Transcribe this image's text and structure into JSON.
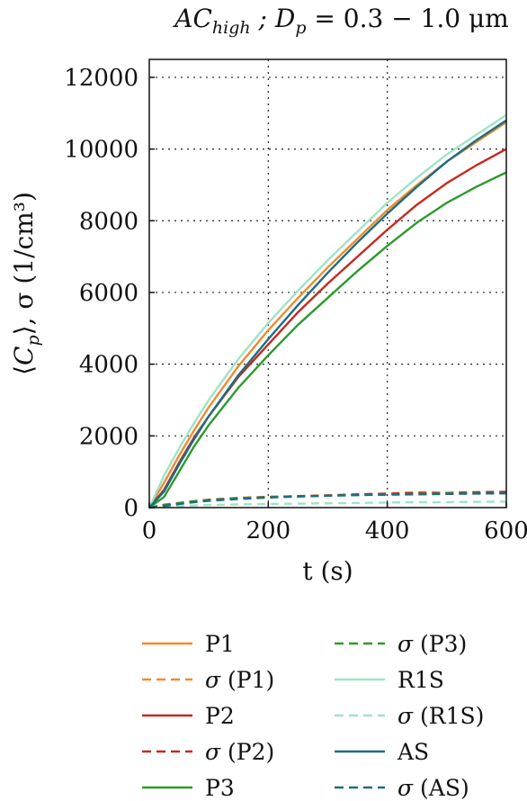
{
  "chart_data": {
    "type": "line",
    "title": "AC_high ; D_p = 0.3 − 1.0 μm",
    "xlabel": "t (s)",
    "ylabel": "⟨C_p⟩, σ (1/cm³)",
    "xlim": [
      0,
      600
    ],
    "ylim": [
      0,
      12500
    ],
    "x_ticks": [
      0,
      200,
      400,
      600
    ],
    "y_ticks": [
      0,
      2000,
      4000,
      6000,
      8000,
      10000,
      12000
    ],
    "grid": true,
    "legend_position": "bottom",
    "x": [
      0,
      25,
      50,
      75,
      100,
      150,
      200,
      250,
      300,
      350,
      400,
      450,
      500,
      550,
      600
    ],
    "series": [
      {
        "name": "P1",
        "color": "#f28a30",
        "dash": "solid",
        "values": [
          0,
          700,
          1450,
          2150,
          2800,
          3950,
          4950,
          5850,
          6700,
          7500,
          8300,
          9000,
          9650,
          10200,
          10750
        ]
      },
      {
        "name": "σ (P1)",
        "color": "#f28a30",
        "dash": "dashed",
        "values": [
          0,
          60,
          110,
          160,
          200,
          250,
          290,
          320,
          340,
          360,
          370,
          380,
          390,
          400,
          410
        ]
      },
      {
        "name": "P2",
        "color": "#c8281e",
        "dash": "solid",
        "values": [
          0,
          500,
          1250,
          1950,
          2550,
          3650,
          4550,
          5450,
          6250,
          7000,
          7750,
          8450,
          9050,
          9550,
          10000
        ]
      },
      {
        "name": "σ (P2)",
        "color": "#c8281e",
        "dash": "dashed",
        "values": [
          0,
          80,
          130,
          180,
          220,
          270,
          300,
          320,
          340,
          370,
          390,
          420,
          410,
          430,
          440
        ]
      },
      {
        "name": "P3",
        "color": "#2d9a2d",
        "dash": "solid",
        "values": [
          0,
          300,
          1000,
          1700,
          2300,
          3350,
          4250,
          5100,
          5850,
          6600,
          7300,
          7950,
          8500,
          8950,
          9350
        ]
      },
      {
        "name": "σ (P3)",
        "color": "#2d9a2d",
        "dash": "dashed",
        "values": [
          0,
          70,
          120,
          170,
          210,
          260,
          290,
          310,
          330,
          350,
          370,
          380,
          390,
          400,
          400
        ]
      },
      {
        "name": "R1S",
        "color": "#9fe3c7",
        "dash": "solid",
        "values": [
          0,
          900,
          1650,
          2350,
          3000,
          4150,
          5150,
          6050,
          6900,
          7700,
          8500,
          9200,
          9850,
          10400,
          10950
        ]
      },
      {
        "name": "σ (R1S)",
        "color": "#9fe3c7",
        "dash": "dashed",
        "values": [
          0,
          20,
          40,
          60,
          70,
          90,
          100,
          110,
          120,
          130,
          140,
          150,
          150,
          160,
          170
        ]
      },
      {
        "name": "AS",
        "color": "#1a6e82",
        "dash": "solid",
        "values": [
          0,
          450,
          1200,
          1900,
          2550,
          3700,
          4700,
          5650,
          6550,
          7400,
          8200,
          8950,
          9650,
          10250,
          10800
        ]
      },
      {
        "name": "σ (AS)",
        "color": "#1a6e82",
        "dash": "dashed",
        "values": [
          0,
          50,
          100,
          150,
          190,
          240,
          280,
          310,
          330,
          350,
          360,
          370,
          380,
          390,
          400
        ]
      }
    ]
  }
}
